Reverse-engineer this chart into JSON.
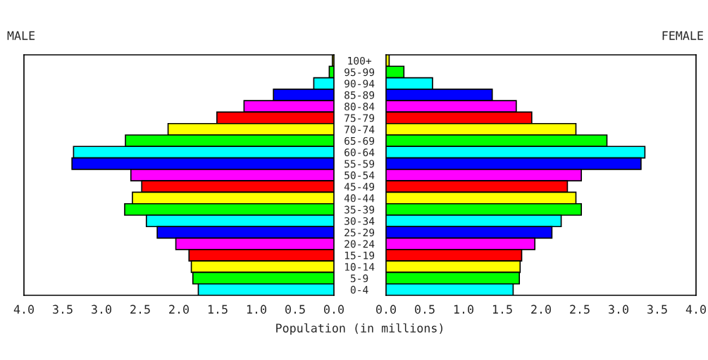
{
  "chart_data": [
    {
      "type": "bar",
      "title": "MALE",
      "orientation": "horizontal",
      "xlabel": "Population (in millions)",
      "categories": [
        "100+",
        "95-99",
        "90-94",
        "85-89",
        "80-84",
        "75-79",
        "70-74",
        "65-69",
        "60-64",
        "55-59",
        "50-54",
        "45-49",
        "40-44",
        "35-39",
        "30-34",
        "25-29",
        "20-24",
        "15-19",
        "10-14",
        "5-9",
        "0-4"
      ],
      "values": [
        0.02,
        0.06,
        0.26,
        0.78,
        1.16,
        1.51,
        2.14,
        2.69,
        3.36,
        3.38,
        2.62,
        2.48,
        2.6,
        2.7,
        2.42,
        2.28,
        2.04,
        1.87,
        1.84,
        1.82,
        1.75
      ],
      "colors": [
        "#ffff00",
        "#00ff00",
        "#00ffff",
        "#0000ff",
        "#ff00ff",
        "#ff0000",
        "#ffff00",
        "#00ff00",
        "#00ffff",
        "#0000ff",
        "#ff00ff",
        "#ff0000",
        "#ffff00",
        "#00ff00",
        "#00ffff",
        "#0000ff",
        "#ff00ff",
        "#ff0000",
        "#ffff00",
        "#00ff00",
        "#00ffff"
      ],
      "xlim": [
        4.0,
        0.0
      ],
      "xticks": [
        {
          "value": 4,
          "label": "4.0"
        },
        3.5,
        {
          "value": 3,
          "label": "3.0"
        },
        2.5,
        {
          "value": 2,
          "label": "2.0"
        },
        1.5,
        {
          "value": 1,
          "label": "1.0"
        },
        0.5,
        {
          "value": 0,
          "label": "0.0"
        }
      ],
      "grid": false
    },
    {
      "type": "bar",
      "title": "FEMALE",
      "orientation": "horizontal",
      "tick_labels": "x",
      "values": [
        0.04,
        0.23,
        0.6,
        1.37,
        1.68,
        1.88,
        2.45,
        2.85,
        3.34,
        3.29,
        2.52,
        2.34,
        2.45,
        2.52,
        2.26,
        2.14,
        1.92,
        1.75,
        1.73,
        1.72,
        1.64
      ],
      "colors": [
        "#ffff00",
        "#00ff00",
        "#00ffff",
        "#0000ff",
        "#ff00ff",
        "#ff0000",
        "#ffff00",
        "#00ff00",
        "#00ffff",
        "#0000ff",
        "#ff00ff",
        "#ff0000",
        "#ffff00",
        "#00ff00",
        "#00ffff",
        "#0000ff",
        "#ff00ff",
        "#ff0000",
        "#ffff00",
        "#00ff00",
        "#00ffff"
      ],
      "xlim": [
        0.0,
        4.0
      ],
      "xticks": [
        {
          "value": 0,
          "label": "0.0"
        },
        0.5,
        {
          "value": 1,
          "label": "1.0"
        },
        1.5,
        {
          "value": 2,
          "label": "2.0"
        },
        2.5,
        {
          "value": 3,
          "label": "3.0"
        },
        3.5,
        {
          "value": 4,
          "label": "4.0"
        }
      ],
      "grid": false
    }
  ]
}
